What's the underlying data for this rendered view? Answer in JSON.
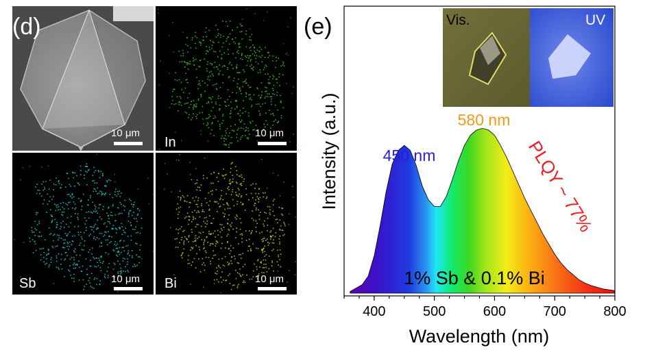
{
  "panel_d": {
    "label": "(d)",
    "images": [
      {
        "kind": "sem",
        "label": "",
        "scale": "10 μm"
      },
      {
        "kind": "map",
        "label": "In",
        "scale": "10 μm",
        "color": "#34c21e"
      },
      {
        "kind": "map",
        "label": "Sb",
        "scale": "10 μm",
        "color": "#1ec3c7"
      },
      {
        "kind": "map",
        "label": "Bi",
        "scale": "10 μm",
        "color": "#c9c21d"
      }
    ]
  },
  "panel_e": {
    "label": "(e)",
    "inset": {
      "left_label": "Vis.",
      "right_label": "UV"
    },
    "chart_data": {
      "type": "area",
      "xlabel": "Wavelength (nm)",
      "ylabel": "Intensity (a.u.)",
      "xlim": [
        350,
        800
      ],
      "ylim": [
        0,
        1
      ],
      "xticks": [
        400,
        500,
        600,
        700,
        800
      ],
      "x": [
        360,
        370,
        380,
        390,
        400,
        410,
        420,
        430,
        440,
        450,
        460,
        470,
        480,
        490,
        500,
        510,
        520,
        530,
        540,
        550,
        560,
        570,
        580,
        590,
        600,
        610,
        620,
        630,
        640,
        650,
        660,
        670,
        680,
        690,
        700,
        710,
        720,
        730,
        740,
        750,
        760,
        770,
        780,
        790,
        800
      ],
      "y": [
        0.01,
        0.03,
        0.05,
        0.1,
        0.22,
        0.4,
        0.6,
        0.76,
        0.84,
        0.87,
        0.84,
        0.75,
        0.63,
        0.55,
        0.51,
        0.51,
        0.57,
        0.67,
        0.78,
        0.87,
        0.93,
        0.96,
        0.97,
        0.96,
        0.93,
        0.87,
        0.8,
        0.72,
        0.64,
        0.56,
        0.49,
        0.42,
        0.35,
        0.29,
        0.23,
        0.18,
        0.14,
        0.11,
        0.08,
        0.06,
        0.045,
        0.035,
        0.025,
        0.02,
        0.015
      ],
      "annotations": [
        {
          "text": "450 nm",
          "x": 450,
          "color": "#2a1bd6"
        },
        {
          "text": "580 nm",
          "x": 580,
          "color": "#f29a17"
        }
      ],
      "side_text": "PLQY ~ 77%",
      "side_color": "#ef1d1d",
      "inner_text": "1% Sb & 0.1% Bi"
    }
  }
}
